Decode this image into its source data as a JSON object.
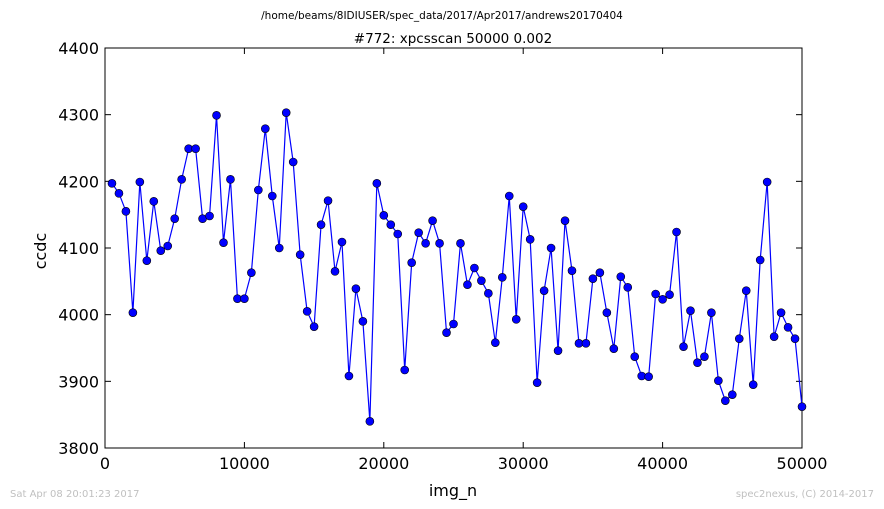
{
  "header": {
    "path": "/home/beams/8IDIUSER/spec_data/2017/Apr2017/andrews20170404",
    "title": "#772: xpcsscan 50000 0.002"
  },
  "footer": {
    "timestamp": "Sat Apr 08 20:01:23 2017",
    "credit": "spec2nexus, (C) 2014-2017"
  },
  "chart_data": {
    "type": "line",
    "xlabel": "img_n",
    "ylabel": "ccdc",
    "xlim": [
      0,
      50000
    ],
    "ylim": [
      3800,
      4400
    ],
    "xticks": [
      "0",
      "10000",
      "20000",
      "30000",
      "40000",
      "50000"
    ],
    "yticks": [
      "3800",
      "3900",
      "4000",
      "4100",
      "4200",
      "4300",
      "4400"
    ],
    "grid": false,
    "line_color": "#0000ff",
    "marker": "circle",
    "x": [
      500,
      1000,
      1500,
      2000,
      2500,
      3000,
      3500,
      4000,
      4500,
      5000,
      5500,
      6000,
      6500,
      7000,
      7500,
      8000,
      8500,
      9000,
      9500,
      10000,
      10500,
      11000,
      11500,
      12000,
      12500,
      13000,
      13500,
      14000,
      14500,
      15000,
      15500,
      16000,
      16500,
      17000,
      17500,
      18000,
      18500,
      19000,
      19500,
      20000,
      20500,
      21000,
      21500,
      22000,
      22500,
      23000,
      23500,
      24000,
      24500,
      25000,
      25500,
      26000,
      26500,
      27000,
      27500,
      28000,
      28500,
      29000,
      29500,
      30000,
      30500,
      31000,
      31500,
      32000,
      32500,
      33000,
      33500,
      34000,
      34500,
      35000,
      35500,
      36000,
      36500,
      37000,
      37500,
      38000,
      38500,
      39000,
      39500,
      40000,
      40500,
      41000,
      41500,
      42000,
      42500,
      43000,
      43500,
      44000,
      44500,
      45000,
      45500,
      46000,
      46500,
      47000,
      47500,
      48000,
      48500,
      49000,
      49500,
      50000
    ],
    "y": [
      4197,
      4182,
      4155,
      4003,
      4199,
      4081,
      4170,
      4096,
      4103,
      4144,
      4203,
      4249,
      4249,
      4144,
      4148,
      4299,
      4108,
      4203,
      4024,
      4024,
      4063,
      4187,
      4279,
      4178,
      4100,
      4303,
      4229,
      4090,
      4005,
      3982,
      4135,
      4171,
      4065,
      4109,
      3908,
      4039,
      3990,
      3840,
      4197,
      4149,
      4135,
      4121,
      3917,
      4078,
      4123,
      4107,
      4141,
      4107,
      3973,
      3986,
      4107,
      4045,
      4070,
      4051,
      4032,
      3958,
      4056,
      4178,
      3993,
      4162,
      4113,
      3898,
      4036,
      4100,
      3946,
      4141,
      4066,
      3957,
      3957,
      4054,
      4063,
      4003,
      3949,
      4057,
      4041,
      3937,
      3908,
      3907,
      4031,
      4023,
      4030,
      4124,
      3952,
      4006,
      3928,
      3937,
      4003,
      3901,
      3871,
      3880,
      3964,
      4036,
      3895,
      4082,
      4199,
      3967,
      4003,
      3981,
      3964,
      3862
    ]
  }
}
